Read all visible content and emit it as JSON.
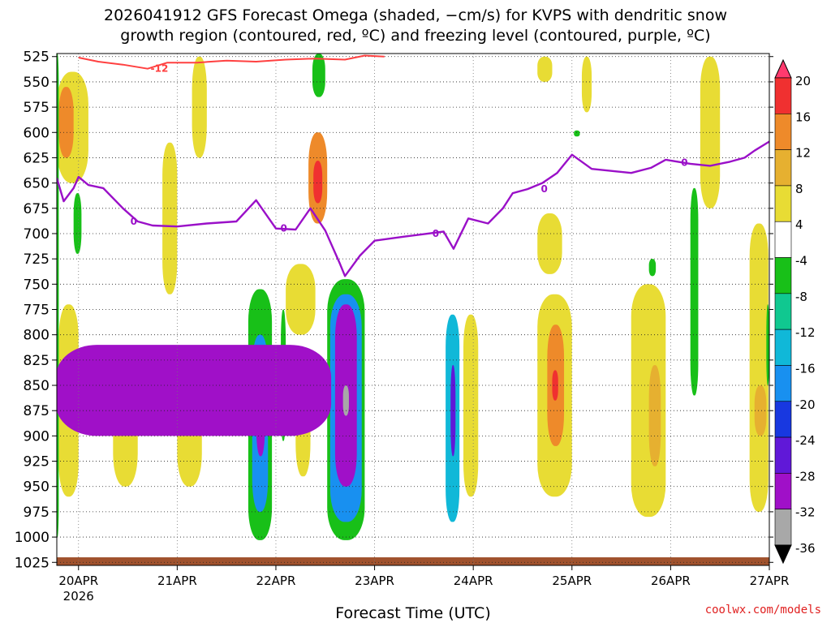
{
  "title_line1": "2026041912 GFS Forecast Omega (shaded, −cm/s) for KVPS with dendritic snow",
  "title_line2": "growth region (contoured, red, ºC) and freezing level (contoured, purple, ºC)",
  "credit": "coolwx.com/models",
  "chart_data": {
    "type": "heatmap",
    "title": "2026041912 GFS Forecast Omega (shaded, −cm/s) for KVPS with dendritic snow growth region (contoured, red, ºC) and freezing level (contoured, purple, ºC)",
    "xlabel": "Forecast Time (UTC)",
    "ylabel": "",
    "x_range_days": [
      -0.22,
      7.0
    ],
    "x_ticks": [
      {
        "day": 0,
        "label": "20APR",
        "sub": "2026"
      },
      {
        "day": 1,
        "label": "21APR"
      },
      {
        "day": 2,
        "label": "22APR"
      },
      {
        "day": 3,
        "label": "23APR"
      },
      {
        "day": 4,
        "label": "24APR"
      },
      {
        "day": 5,
        "label": "25APR"
      },
      {
        "day": 6,
        "label": "26APR"
      },
      {
        "day": 7,
        "label": "27APR"
      }
    ],
    "y_ticks": [
      525,
      550,
      575,
      600,
      625,
      650,
      675,
      700,
      725,
      750,
      775,
      800,
      825,
      850,
      875,
      900,
      925,
      950,
      975,
      1000,
      1025
    ],
    "y_range_hpa": [
      522,
      1028
    ],
    "colorbar": {
      "levels": [
        20,
        16,
        12,
        8,
        4,
        -4,
        -8,
        -12,
        -16,
        -20,
        -24,
        -28,
        -32,
        -36
      ],
      "colors": [
        "#ff3a6e",
        "#f03030",
        "#ee8a2a",
        "#e6b030",
        "#e8dc34",
        "#ffffff",
        "#18c018",
        "#10c890",
        "#10b8d8",
        "#1890f0",
        "#1838e0",
        "#6018d8",
        "#a010c8",
        "#a8a8a8",
        "#000000"
      ]
    },
    "freezing_level_hpa": [
      [
        -0.22,
        645
      ],
      [
        -0.15,
        668
      ],
      [
        -0.05,
        655
      ],
      [
        0.0,
        644
      ],
      [
        0.1,
        652
      ],
      [
        0.25,
        655
      ],
      [
        0.45,
        675
      ],
      [
        0.6,
        688
      ],
      [
        0.75,
        692
      ],
      [
        1.0,
        693
      ],
      [
        1.3,
        690
      ],
      [
        1.6,
        688
      ],
      [
        1.8,
        667
      ],
      [
        2.0,
        695
      ],
      [
        2.2,
        696
      ],
      [
        2.35,
        675
      ],
      [
        2.5,
        697
      ],
      [
        2.65,
        730
      ],
      [
        2.7,
        742
      ],
      [
        2.85,
        722
      ],
      [
        3.0,
        707
      ],
      [
        3.3,
        703
      ],
      [
        3.7,
        698
      ],
      [
        3.8,
        715
      ],
      [
        3.95,
        685
      ],
      [
        4.15,
        690
      ],
      [
        4.3,
        675
      ],
      [
        4.4,
        660
      ],
      [
        4.55,
        656
      ],
      [
        4.7,
        650
      ],
      [
        4.85,
        640
      ],
      [
        5.0,
        622
      ],
      [
        5.2,
        636
      ],
      [
        5.4,
        638
      ],
      [
        5.6,
        640
      ],
      [
        5.8,
        635
      ],
      [
        5.95,
        627
      ],
      [
        6.2,
        631
      ],
      [
        6.4,
        633
      ],
      [
        6.6,
        629
      ],
      [
        6.75,
        625
      ],
      [
        6.85,
        618
      ],
      [
        7.0,
        609
      ]
    ],
    "freezing_level_labels": [
      {
        "label": "0",
        "day": 0.56,
        "hpa": 688
      },
      {
        "label": "0",
        "day": 2.08,
        "hpa": 695
      },
      {
        "label": "0",
        "day": 3.62,
        "hpa": 700
      },
      {
        "label": "0",
        "day": 4.72,
        "hpa": 656
      },
      {
        "label": "0",
        "day": 6.14,
        "hpa": 630
      }
    ],
    "dgz_contour_hpa": [
      [
        0.0,
        526
      ],
      [
        0.2,
        530
      ],
      [
        0.45,
        533
      ],
      [
        0.7,
        537
      ],
      [
        0.9,
        531
      ],
      [
        1.2,
        531
      ],
      [
        1.5,
        529
      ],
      [
        1.8,
        530
      ],
      [
        2.1,
        528
      ],
      [
        2.4,
        527
      ],
      [
        2.7,
        528
      ],
      [
        2.9,
        524
      ],
      [
        3.1,
        525
      ]
    ],
    "dgz_label": {
      "label": "-12",
      "day": 0.82,
      "hpa": 536
    },
    "omega_regions": [
      {
        "value": 12,
        "d0": -0.2,
        "d1": -0.05,
        "p0": 555,
        "p1": 625
      },
      {
        "value": 4,
        "d0": -0.22,
        "d1": 0.1,
        "p0": 540,
        "p1": 650
      },
      {
        "value": -8,
        "d0": 2.37,
        "d1": 2.5,
        "p0": 522,
        "p1": 565
      },
      {
        "value": 16,
        "d0": 2.38,
        "d1": 2.47,
        "p0": 628,
        "p1": 670
      },
      {
        "value": 12,
        "d0": 2.33,
        "d1": 2.52,
        "p0": 600,
        "p1": 690
      },
      {
        "value": -28,
        "d0": -0.23,
        "d1": 2.56,
        "p0": 810,
        "p1": 900
      },
      {
        "value": -32,
        "d0": 2.68,
        "d1": 2.74,
        "p0": 850,
        "p1": 880
      },
      {
        "value": -28,
        "d0": 2.6,
        "d1": 2.82,
        "p0": 770,
        "p1": 950
      },
      {
        "value": -16,
        "d0": 2.55,
        "d1": 2.87,
        "p0": 760,
        "p1": 985
      },
      {
        "value": -8,
        "d0": 2.52,
        "d1": 2.9,
        "p0": 745,
        "p1": 1003
      },
      {
        "value": -28,
        "d0": 1.8,
        "d1": 1.89,
        "p0": 835,
        "p1": 920
      },
      {
        "value": -16,
        "d0": 1.76,
        "d1": 1.92,
        "p0": 800,
        "p1": 975
      },
      {
        "value": -8,
        "d0": 1.72,
        "d1": 1.96,
        "p0": 755,
        "p1": 1003
      },
      {
        "value": -24,
        "d0": 3.77,
        "d1": 3.82,
        "p0": 830,
        "p1": 920
      },
      {
        "value": -12,
        "d0": 3.72,
        "d1": 3.86,
        "p0": 780,
        "p1": 985
      },
      {
        "value": 20,
        "d0": 4.8,
        "d1": 4.86,
        "p0": 835,
        "p1": 865
      },
      {
        "value": 12,
        "d0": 4.75,
        "d1": 4.92,
        "p0": 790,
        "p1": 910
      },
      {
        "value": 4,
        "d0": 4.65,
        "d1": 5.0,
        "p0": 760,
        "p1": 960
      },
      {
        "value": 8,
        "d0": 5.78,
        "d1": 5.9,
        "p0": 830,
        "p1": 930
      },
      {
        "value": 4,
        "d0": 5.6,
        "d1": 5.95,
        "p0": 750,
        "p1": 980
      },
      {
        "value": -8,
        "d0": 6.2,
        "d1": 6.28,
        "p0": 655,
        "p1": 860
      },
      {
        "value": 8,
        "d0": 6.85,
        "d1": 6.97,
        "p0": 850,
        "p1": 900
      },
      {
        "value": 4,
        "d0": 6.8,
        "d1": 6.99,
        "p0": 690,
        "p1": 975
      },
      {
        "value": -8,
        "d0": 6.97,
        "d1": 7.0,
        "p0": 770,
        "p1": 850
      },
      {
        "value": 4,
        "d0": 6.3,
        "d1": 6.5,
        "p0": 525,
        "p1": 675
      },
      {
        "value": 4,
        "d0": 5.1,
        "d1": 5.2,
        "p0": 525,
        "p1": 580
      },
      {
        "value": 4,
        "d0": 4.65,
        "d1": 4.8,
        "p0": 525,
        "p1": 550
      },
      {
        "value": -8,
        "d0": 5.02,
        "d1": 5.08,
        "p0": 598,
        "p1": 604
      },
      {
        "value": -8,
        "d0": 5.78,
        "d1": 5.85,
        "p0": 725,
        "p1": 742
      },
      {
        "value": 4,
        "d0": 4.65,
        "d1": 4.9,
        "p0": 680,
        "p1": 740
      },
      {
        "value": 4,
        "d0": 1.0,
        "d1": 1.25,
        "p0": 840,
        "p1": 950
      },
      {
        "value": 4,
        "d0": 0.35,
        "d1": 0.6,
        "p0": 850,
        "p1": 950
      },
      {
        "value": 4,
        "d0": -0.2,
        "d1": 0.0,
        "p0": 770,
        "p1": 960
      },
      {
        "value": 4,
        "d0": 2.1,
        "d1": 2.4,
        "p0": 730,
        "p1": 800
      },
      {
        "value": 4,
        "d0": 1.15,
        "d1": 1.3,
        "p0": 525,
        "p1": 625
      },
      {
        "value": 4,
        "d0": 0.85,
        "d1": 1.0,
        "p0": 610,
        "p1": 760
      },
      {
        "value": -8,
        "d0": -0.23,
        "d1": -0.2,
        "p0": 522,
        "p1": 1000
      },
      {
        "value": -8,
        "d0": -0.05,
        "d1": 0.03,
        "p0": 660,
        "p1": 720
      },
      {
        "value": 4,
        "d0": 3.9,
        "d1": 4.05,
        "p0": 780,
        "p1": 960
      },
      {
        "value": 4,
        "d0": 2.2,
        "d1": 2.35,
        "p0": 820,
        "p1": 940
      },
      {
        "value": -8,
        "d0": 2.05,
        "d1": 2.1,
        "p0": 775,
        "p1": 905
      }
    ],
    "surface_band_color": "#a0522d"
  }
}
